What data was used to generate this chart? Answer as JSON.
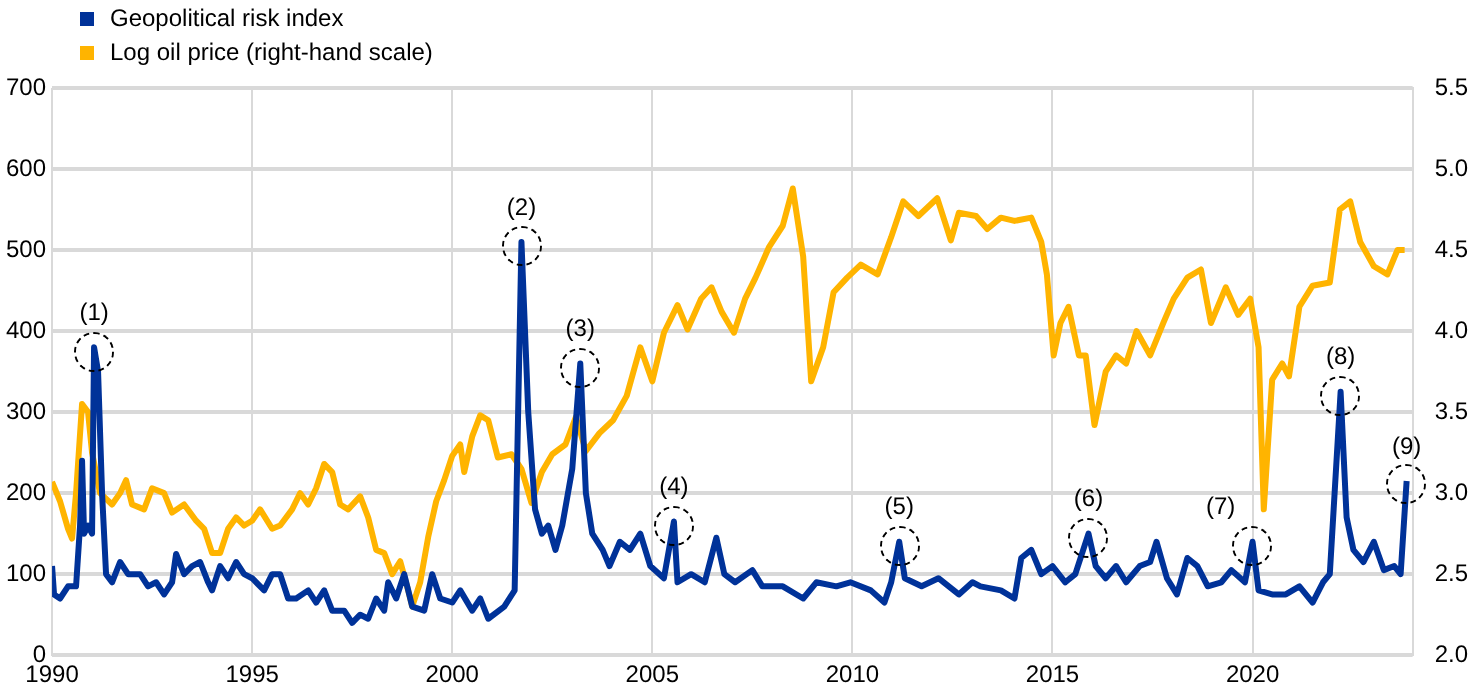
{
  "chart_data": {
    "type": "line",
    "xlim": [
      1990,
      2024
    ],
    "xticks": [
      1990,
      1995,
      2000,
      2005,
      2010,
      2015,
      2020
    ],
    "ylim": [
      0,
      700
    ],
    "yticks": [
      0,
      100,
      200,
      300,
      400,
      500,
      600,
      700
    ],
    "y2lim": [
      2.0,
      5.5
    ],
    "y2ticks": [
      {
        "value": 2,
        "label": "2.0"
      },
      {
        "value": 2.5,
        "label": "2.5"
      },
      {
        "value": 3,
        "label": "3.0"
      },
      {
        "value": 3.5,
        "label": "3.5"
      },
      {
        "value": 4,
        "label": "4.0"
      },
      {
        "value": 4.5,
        "label": "4.5"
      },
      {
        "value": 5,
        "label": "5.0"
      },
      {
        "value": 5.5,
        "label": "5.5"
      }
    ],
    "grid": true,
    "legend": "top left",
    "marker": "none",
    "line_style": "solid",
    "series": [
      {
        "name": "Geopolitical risk index",
        "color": "#003299",
        "x": [
          1990.0,
          1990.05,
          1990.2,
          1990.4,
          1990.6,
          1990.7,
          1990.75,
          1990.8,
          1990.9,
          1991.0,
          1991.05,
          1991.15,
          1991.25,
          1991.35,
          1991.5,
          1991.7,
          1991.9,
          1992.2,
          1992.4,
          1992.6,
          1992.8,
          1993.0,
          1993.1,
          1993.3,
          1993.5,
          1993.7,
          1993.9,
          1994.0,
          1994.2,
          1994.4,
          1994.6,
          1994.8,
          1995.0,
          1995.3,
          1995.5,
          1995.7,
          1995.9,
          1996.1,
          1996.4,
          1996.6,
          1996.8,
          1997.0,
          1997.3,
          1997.5,
          1997.7,
          1997.9,
          1998.1,
          1998.3,
          1998.4,
          1998.6,
          1998.8,
          1999.0,
          1999.3,
          1999.5,
          1999.7,
          2000.0,
          2000.2,
          2000.5,
          2000.7,
          2000.9,
          2001.3,
          2001.56,
          2001.73,
          2001.9,
          2002.07,
          2002.24,
          2002.4,
          2002.58,
          2002.75,
          2003.0,
          2003.2,
          2003.34,
          2003.5,
          2003.76,
          2003.93,
          2004.19,
          2004.44,
          2004.7,
          2004.95,
          2005.29,
          2005.54,
          2005.63,
          2005.97,
          2006.31,
          2006.6,
          2006.8,
          2007.07,
          2007.5,
          2007.75,
          2008.26,
          2008.77,
          2009.1,
          2009.6,
          2009.95,
          2010.46,
          2010.8,
          2010.97,
          2011.17,
          2011.31,
          2011.73,
          2012.15,
          2012.66,
          2013.0,
          2013.2,
          2013.71,
          2014.05,
          2014.22,
          2014.47,
          2014.72,
          2015.0,
          2015.32,
          2015.57,
          2015.9,
          2016.08,
          2016.33,
          2016.59,
          2016.84,
          2017.18,
          2017.44,
          2017.6,
          2017.86,
          2018.11,
          2018.37,
          2018.62,
          2018.88,
          2019.22,
          2019.47,
          2019.81,
          2020.0,
          2020.15,
          2020.49,
          2020.83,
          2021.17,
          2021.5,
          2021.76,
          2021.93,
          2022.05,
          2022.2,
          2022.35,
          2022.52,
          2022.77,
          2023.03,
          2023.28,
          2023.54,
          2023.7,
          2023.85
        ],
        "values": [
          110,
          75,
          70,
          85,
          85,
          160,
          240,
          150,
          160,
          150,
          380,
          350,
          200,
          100,
          90,
          115,
          100,
          100,
          85,
          90,
          75,
          90,
          125,
          100,
          110,
          115,
          90,
          80,
          110,
          95,
          115,
          100,
          95,
          80,
          100,
          100,
          70,
          70,
          80,
          65,
          80,
          55,
          55,
          40,
          50,
          45,
          70,
          55,
          90,
          70,
          100,
          60,
          55,
          100,
          70,
          65,
          80,
          55,
          70,
          45,
          60,
          80,
          510,
          300,
          180,
          150,
          160,
          130,
          160,
          230,
          360,
          200,
          150,
          130,
          110,
          140,
          130,
          150,
          110,
          95,
          165,
          90,
          100,
          90,
          145,
          100,
          90,
          105,
          85,
          85,
          70,
          90,
          85,
          90,
          80,
          65,
          90,
          140,
          95,
          85,
          95,
          75,
          90,
          85,
          80,
          70,
          120,
          130,
          100,
          110,
          90,
          100,
          150,
          110,
          95,
          110,
          90,
          110,
          115,
          140,
          95,
          75,
          120,
          110,
          85,
          90,
          105,
          90,
          140,
          80,
          75,
          75,
          85,
          65,
          90,
          100,
          200,
          325,
          170,
          130,
          115,
          140,
          105,
          110,
          100,
          215
        ]
      },
      {
        "name": "Log oil price (right-hand scale)",
        "color": "#ffb400",
        "axis": "y2",
        "x": [
          1990.0,
          1990.2,
          1990.4,
          1990.5,
          1990.6,
          1990.75,
          1990.9,
          1991.0,
          1991.2,
          1991.5,
          1991.7,
          1991.85,
          1992.0,
          1992.3,
          1992.5,
          1992.8,
          1993.0,
          1993.3,
          1993.6,
          1993.8,
          1994.0,
          1994.2,
          1994.4,
          1994.6,
          1994.8,
          1995.0,
          1995.2,
          1995.5,
          1995.7,
          1996.0,
          1996.2,
          1996.4,
          1996.6,
          1996.8,
          1997.0,
          1997.2,
          1997.4,
          1997.7,
          1997.9,
          1998.1,
          1998.3,
          1998.5,
          1998.7,
          1998.9,
          1999.0,
          1999.2,
          1999.4,
          1999.6,
          1999.8,
          2000.0,
          2000.2,
          2000.3,
          2000.5,
          2000.7,
          2000.9,
          2001.14,
          2001.48,
          2001.73,
          2001.98,
          2002.24,
          2002.5,
          2002.83,
          2003.09,
          2003.34,
          2003.68,
          2004.02,
          2004.36,
          2004.7,
          2005.0,
          2005.29,
          2005.63,
          2005.88,
          2006.22,
          2006.48,
          2006.73,
          2007.04,
          2007.32,
          2007.58,
          2007.92,
          2008.26,
          2008.51,
          2008.77,
          2008.97,
          2009.27,
          2009.53,
          2009.87,
          2010.21,
          2010.63,
          2010.97,
          2011.27,
          2011.65,
          2012.12,
          2012.46,
          2012.66,
          2013.09,
          2013.37,
          2013.71,
          2014.05,
          2014.47,
          2014.72,
          2014.86,
          2015.03,
          2015.2,
          2015.4,
          2015.66,
          2015.83,
          2016.05,
          2016.33,
          2016.59,
          2016.84,
          2017.1,
          2017.44,
          2017.77,
          2018.03,
          2018.37,
          2018.71,
          2018.96,
          2019.33,
          2019.64,
          2019.94,
          2020.15,
          2020.28,
          2020.49,
          2020.74,
          2020.91,
          2021.17,
          2021.5,
          2021.93,
          2022.18,
          2022.44,
          2022.69,
          2023.03,
          2023.37,
          2023.62,
          2023.8
        ],
        "values": [
          3.07,
          2.95,
          2.78,
          2.72,
          3.0,
          3.55,
          3.5,
          3.25,
          3.0,
          2.93,
          3.0,
          3.08,
          2.93,
          2.9,
          3.03,
          3.0,
          2.88,
          2.93,
          2.83,
          2.78,
          2.63,
          2.63,
          2.78,
          2.85,
          2.8,
          2.83,
          2.9,
          2.78,
          2.8,
          2.9,
          3.0,
          2.93,
          3.03,
          3.18,
          3.13,
          2.93,
          2.9,
          2.98,
          2.85,
          2.65,
          2.63,
          2.5,
          2.58,
          2.4,
          2.3,
          2.45,
          2.73,
          2.95,
          3.08,
          3.23,
          3.3,
          3.13,
          3.35,
          3.48,
          3.45,
          3.22,
          3.24,
          3.15,
          2.94,
          3.13,
          3.24,
          3.3,
          3.47,
          3.26,
          3.37,
          3.45,
          3.6,
          3.9,
          3.69,
          3.99,
          4.16,
          4.01,
          4.2,
          4.27,
          4.12,
          3.99,
          4.2,
          4.33,
          4.52,
          4.65,
          4.88,
          4.46,
          3.69,
          3.9,
          4.24,
          4.33,
          4.41,
          4.35,
          4.58,
          4.8,
          4.71,
          4.82,
          4.56,
          4.73,
          4.71,
          4.63,
          4.7,
          4.68,
          4.7,
          4.55,
          4.35,
          3.85,
          4.05,
          4.15,
          3.85,
          3.85,
          3.42,
          3.75,
          3.85,
          3.8,
          4.0,
          3.85,
          4.05,
          4.2,
          4.33,
          4.38,
          4.05,
          4.27,
          4.1,
          4.2,
          3.9,
          2.9,
          3.7,
          3.8,
          3.72,
          4.15,
          4.28,
          4.3,
          4.75,
          4.8,
          4.55,
          4.4,
          4.35,
          4.5,
          4.5
        ]
      }
    ],
    "annotations": [
      {
        "text": "(1)",
        "x": 1991.05,
        "y": 380
      },
      {
        "text": "(2)",
        "x": 2001.73,
        "y": 510
      },
      {
        "text": "(3)",
        "x": 2003.2,
        "y": 360
      },
      {
        "text": "(4)",
        "x": 2005.54,
        "y": 165
      },
      {
        "text": "(5)",
        "x": 2011.17,
        "y": 140
      },
      {
        "text": "(6)",
        "x": 2015.9,
        "y": 150
      },
      {
        "text": "(7)",
        "x": 2020.0,
        "y": 140
      },
      {
        "text": "(8)",
        "x": 2022.2,
        "y": 325
      },
      {
        "text": "(9)",
        "x": 2023.85,
        "y": 215
      }
    ]
  }
}
